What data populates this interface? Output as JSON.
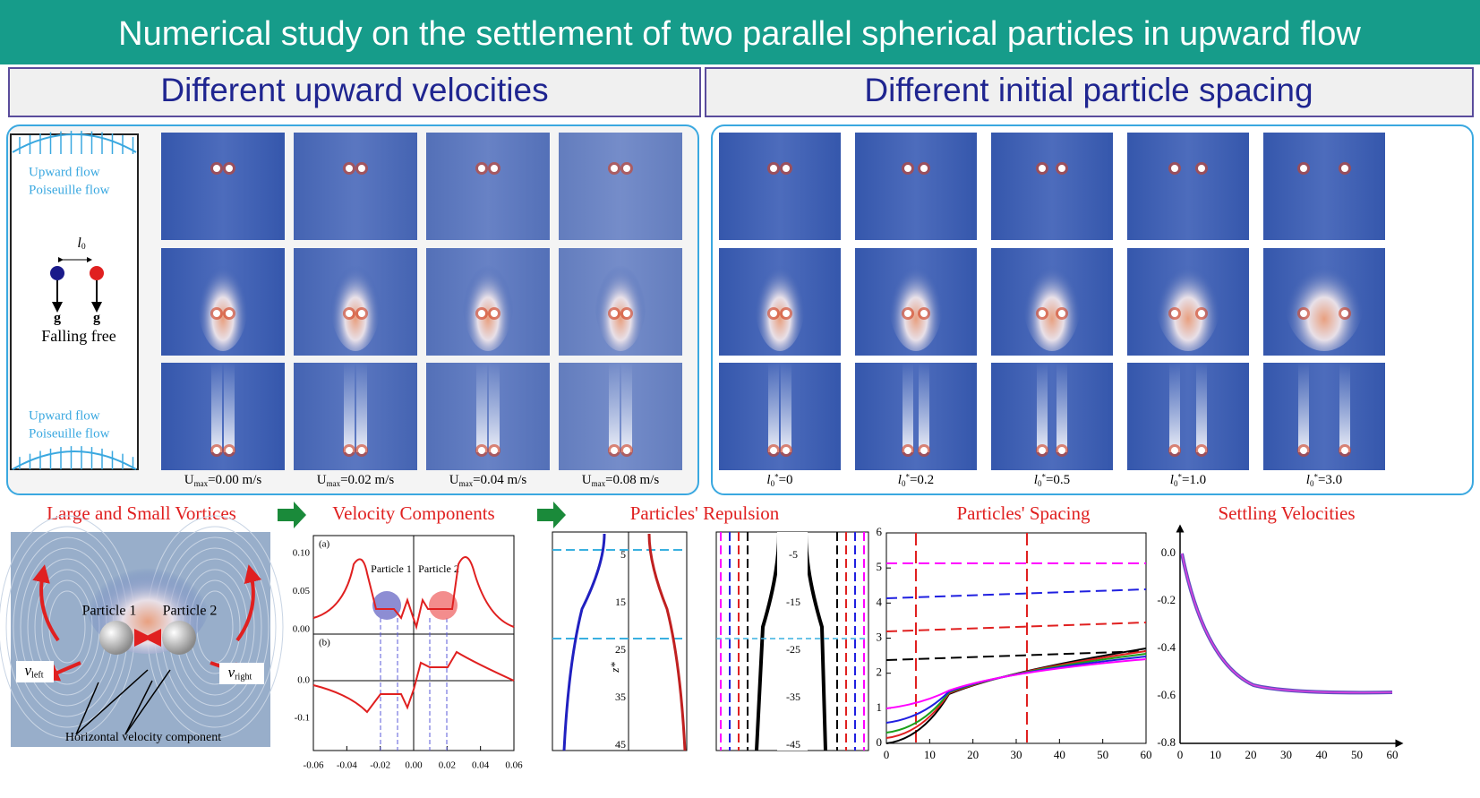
{
  "title": "Numerical study on the settlement of two parallel spherical particles in upward flow",
  "sections": [
    "Different upward velocities",
    "Different initial particle spacing"
  ],
  "schematic": {
    "top": [
      "Upward flow",
      "Poiseuille flow"
    ],
    "spacing": {
      "symbol": "l",
      "subscript": "0"
    },
    "gravity": [
      "g",
      "g"
    ],
    "caption": "Falling free",
    "bottom": [
      "Upward flow",
      "Poiseuille flow"
    ]
  },
  "velocity_cases": [
    {
      "symbol": "U",
      "subscript": "max",
      "value": "=0.00 m/s"
    },
    {
      "symbol": "U",
      "subscript": "max",
      "value": "=0.02 m/s"
    },
    {
      "symbol": "U",
      "subscript": "max",
      "value": "=0.04 m/s"
    },
    {
      "symbol": "U",
      "subscript": "max",
      "value": "=0.08 m/s"
    }
  ],
  "spacing_cases": [
    {
      "symbol": "l",
      "subscript": "0",
      "superscript": "*",
      "value": "=0"
    },
    {
      "symbol": "l",
      "subscript": "0",
      "superscript": "*",
      "value": "=0.2"
    },
    {
      "symbol": "l",
      "subscript": "0",
      "superscript": "*",
      "value": "=0.5"
    },
    {
      "symbol": "l",
      "subscript": "0",
      "superscript": "*",
      "value": "=1.0"
    },
    {
      "symbol": "l",
      "subscript": "0",
      "superscript": "*",
      "value": "=3.0"
    }
  ],
  "flow": [
    "Large and Small Vortices",
    "Velocity Components",
    "Particles' Repulsion",
    "Particles' Spacing",
    "Settling Velocities"
  ],
  "vortices": {
    "particles": [
      "Particle 1",
      "Particle 2"
    ],
    "v_left": {
      "symbol": "v",
      "subscript": "left"
    },
    "v_right": {
      "symbol": "v",
      "subscript": "right"
    },
    "caption": "Horizontal velocity component"
  },
  "velocity_plot": {
    "panels": [
      "(a)",
      "(b)"
    ],
    "a_yticks": [
      "0.10",
      "0.05",
      "0.00"
    ],
    "b_yticks": [
      "0.0",
      "-0.1"
    ],
    "xticks": [
      "-0.06",
      "-0.04",
      "-0.02",
      "0.00",
      "0.02",
      "0.04",
      "0.06"
    ],
    "particles": [
      "Particle 1",
      "Particle 2"
    ]
  },
  "repulsion_plot": {
    "yticks": [
      5,
      15,
      25,
      35,
      45
    ],
    "ylabel": "z*"
  },
  "repulsion_plot_2": {
    "yticks": [
      -5,
      -15,
      -25,
      -35,
      -45
    ]
  },
  "spacing_plot": {
    "yticks": [
      0,
      1,
      2,
      3,
      4,
      5,
      6
    ],
    "xticks": [
      0,
      10,
      20,
      30,
      40,
      50,
      60
    ]
  },
  "settling_plot": {
    "yticks": [
      "0.0",
      "-0.2",
      "-0.4",
      "-0.6",
      "-0.8"
    ],
    "xticks": [
      0,
      10,
      20,
      30,
      40,
      50,
      60
    ]
  }
}
